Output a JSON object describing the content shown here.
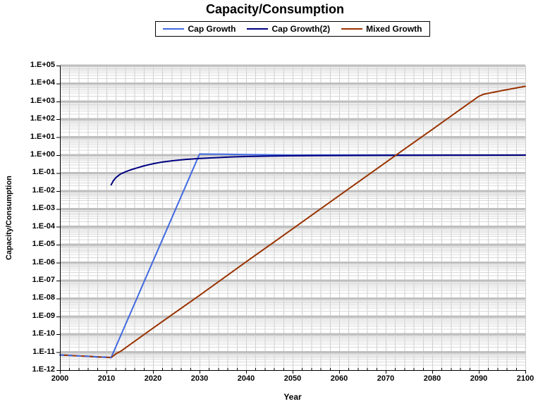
{
  "chart": {
    "title": "Capacity/Consumption",
    "x_axis": {
      "title": "Year",
      "tick_labels": [
        "2000",
        "2010",
        "2020",
        "2030",
        "2040",
        "2050",
        "2060",
        "2070",
        "2080",
        "2090",
        "2100"
      ]
    },
    "y_axis": {
      "title": "Capacity/Consumption",
      "tick_labels": [
        "1.E+05",
        "1.E+04",
        "1.E+03",
        "1.E+02",
        "1.E+01",
        "1.E+00",
        "1.E-01",
        "1.E-02",
        "1.E-03",
        "1.E-04",
        "1.E-05",
        "1.E-06",
        "1.E-07",
        "1.E-08",
        "1.E-09",
        "1.E-10",
        "1.E-11",
        "1.E-12"
      ]
    },
    "colors": {
      "major_gridline": "#BFBFBF",
      "minor_gridline": "#D9D9D9",
      "vertical_gridline": "#CDCDCD",
      "axis_line": "#000000"
    }
  },
  "chart_data": {
    "type": "line",
    "title": "Capacity/Consumption",
    "xlabel": "Year",
    "ylabel": "Capacity/Consumption",
    "x_range": [
      2000,
      2100
    ],
    "x_major_step": 10,
    "x_minor_step": 2,
    "y_scale": "log10",
    "y_range_exp": [
      -12,
      5
    ],
    "grid": true,
    "legend_position": "top-center",
    "series": [
      {
        "name": "Cap Growth",
        "color": "#4169E1",
        "points": [
          [
            2000,
            7e-12
          ],
          [
            2002,
            6.6e-12
          ],
          [
            2004,
            6.2e-12
          ],
          [
            2006,
            5.9e-12
          ],
          [
            2008,
            5.5e-12
          ],
          [
            2010,
            5.2e-12
          ],
          [
            2011,
            5e-12
          ],
          [
            2030,
            1.15
          ],
          [
            2035,
            1.12
          ],
          [
            2040,
            1.08
          ],
          [
            2046,
            1.03
          ],
          [
            2050,
            1.0
          ],
          [
            2100,
            1.0
          ]
        ]
      },
      {
        "name": "Cap Growth(2)",
        "color": "#000080",
        "points": [
          [
            2011,
            0.022
          ],
          [
            2011.5,
            0.038
          ],
          [
            2012,
            0.055
          ],
          [
            2013,
            0.088
          ],
          [
            2014,
            0.115
          ],
          [
            2015,
            0.145
          ],
          [
            2016,
            0.175
          ],
          [
            2017,
            0.21
          ],
          [
            2018,
            0.25
          ],
          [
            2019,
            0.29
          ],
          [
            2020,
            0.33
          ],
          [
            2021,
            0.37
          ],
          [
            2022,
            0.41
          ],
          [
            2023,
            0.445
          ],
          [
            2024,
            0.48
          ],
          [
            2025,
            0.51
          ],
          [
            2026,
            0.545
          ],
          [
            2027,
            0.575
          ],
          [
            2028,
            0.6
          ],
          [
            2029,
            0.625
          ],
          [
            2030,
            0.65
          ],
          [
            2032,
            0.695
          ],
          [
            2034,
            0.735
          ],
          [
            2036,
            0.775
          ],
          [
            2038,
            0.81
          ],
          [
            2040,
            0.84
          ],
          [
            2043,
            0.87
          ],
          [
            2046,
            0.895
          ],
          [
            2050,
            0.92
          ],
          [
            2055,
            0.94
          ],
          [
            2060,
            0.955
          ],
          [
            2070,
            0.975
          ],
          [
            2080,
            0.988
          ],
          [
            2090,
            0.996
          ],
          [
            2100,
            1.0
          ]
        ]
      },
      {
        "name": "Mixed Growth",
        "color": "#993300",
        "points": [
          [
            2000,
            7e-12
          ],
          [
            2002,
            6.6e-12
          ],
          [
            2004,
            6.2e-12
          ],
          [
            2006,
            5.9e-12
          ],
          [
            2008,
            5.5e-12
          ],
          [
            2010,
            5.2e-12
          ],
          [
            2011,
            5e-12
          ],
          [
            2012,
            8e-12
          ],
          [
            2013,
            1.1e-11
          ],
          [
            2020,
            2.2e-10
          ],
          [
            2030,
            1.5e-08
          ],
          [
            2040,
            1.1e-06
          ],
          [
            2050,
            7.7e-05
          ],
          [
            2060,
            0.0055
          ],
          [
            2070,
            0.39
          ],
          [
            2075,
            3.3
          ],
          [
            2080,
            27
          ],
          [
            2085,
            230
          ],
          [
            2090,
            1900
          ],
          [
            2091,
            2500
          ],
          [
            2095,
            4000
          ],
          [
            2100,
            7000
          ]
        ]
      }
    ],
    "overlap_dash": {
      "note": "Cap Growth dashes visible where Mixed Growth overlaps it (2000-2011)",
      "color": "#4169E1",
      "points": [
        [
          2000,
          7e-12
        ],
        [
          2002,
          6.6e-12
        ],
        [
          2004,
          6.2e-12
        ],
        [
          2006,
          5.9e-12
        ],
        [
          2008,
          5.5e-12
        ],
        [
          2010,
          5.2e-12
        ],
        [
          2011,
          5e-12
        ]
      ]
    }
  }
}
